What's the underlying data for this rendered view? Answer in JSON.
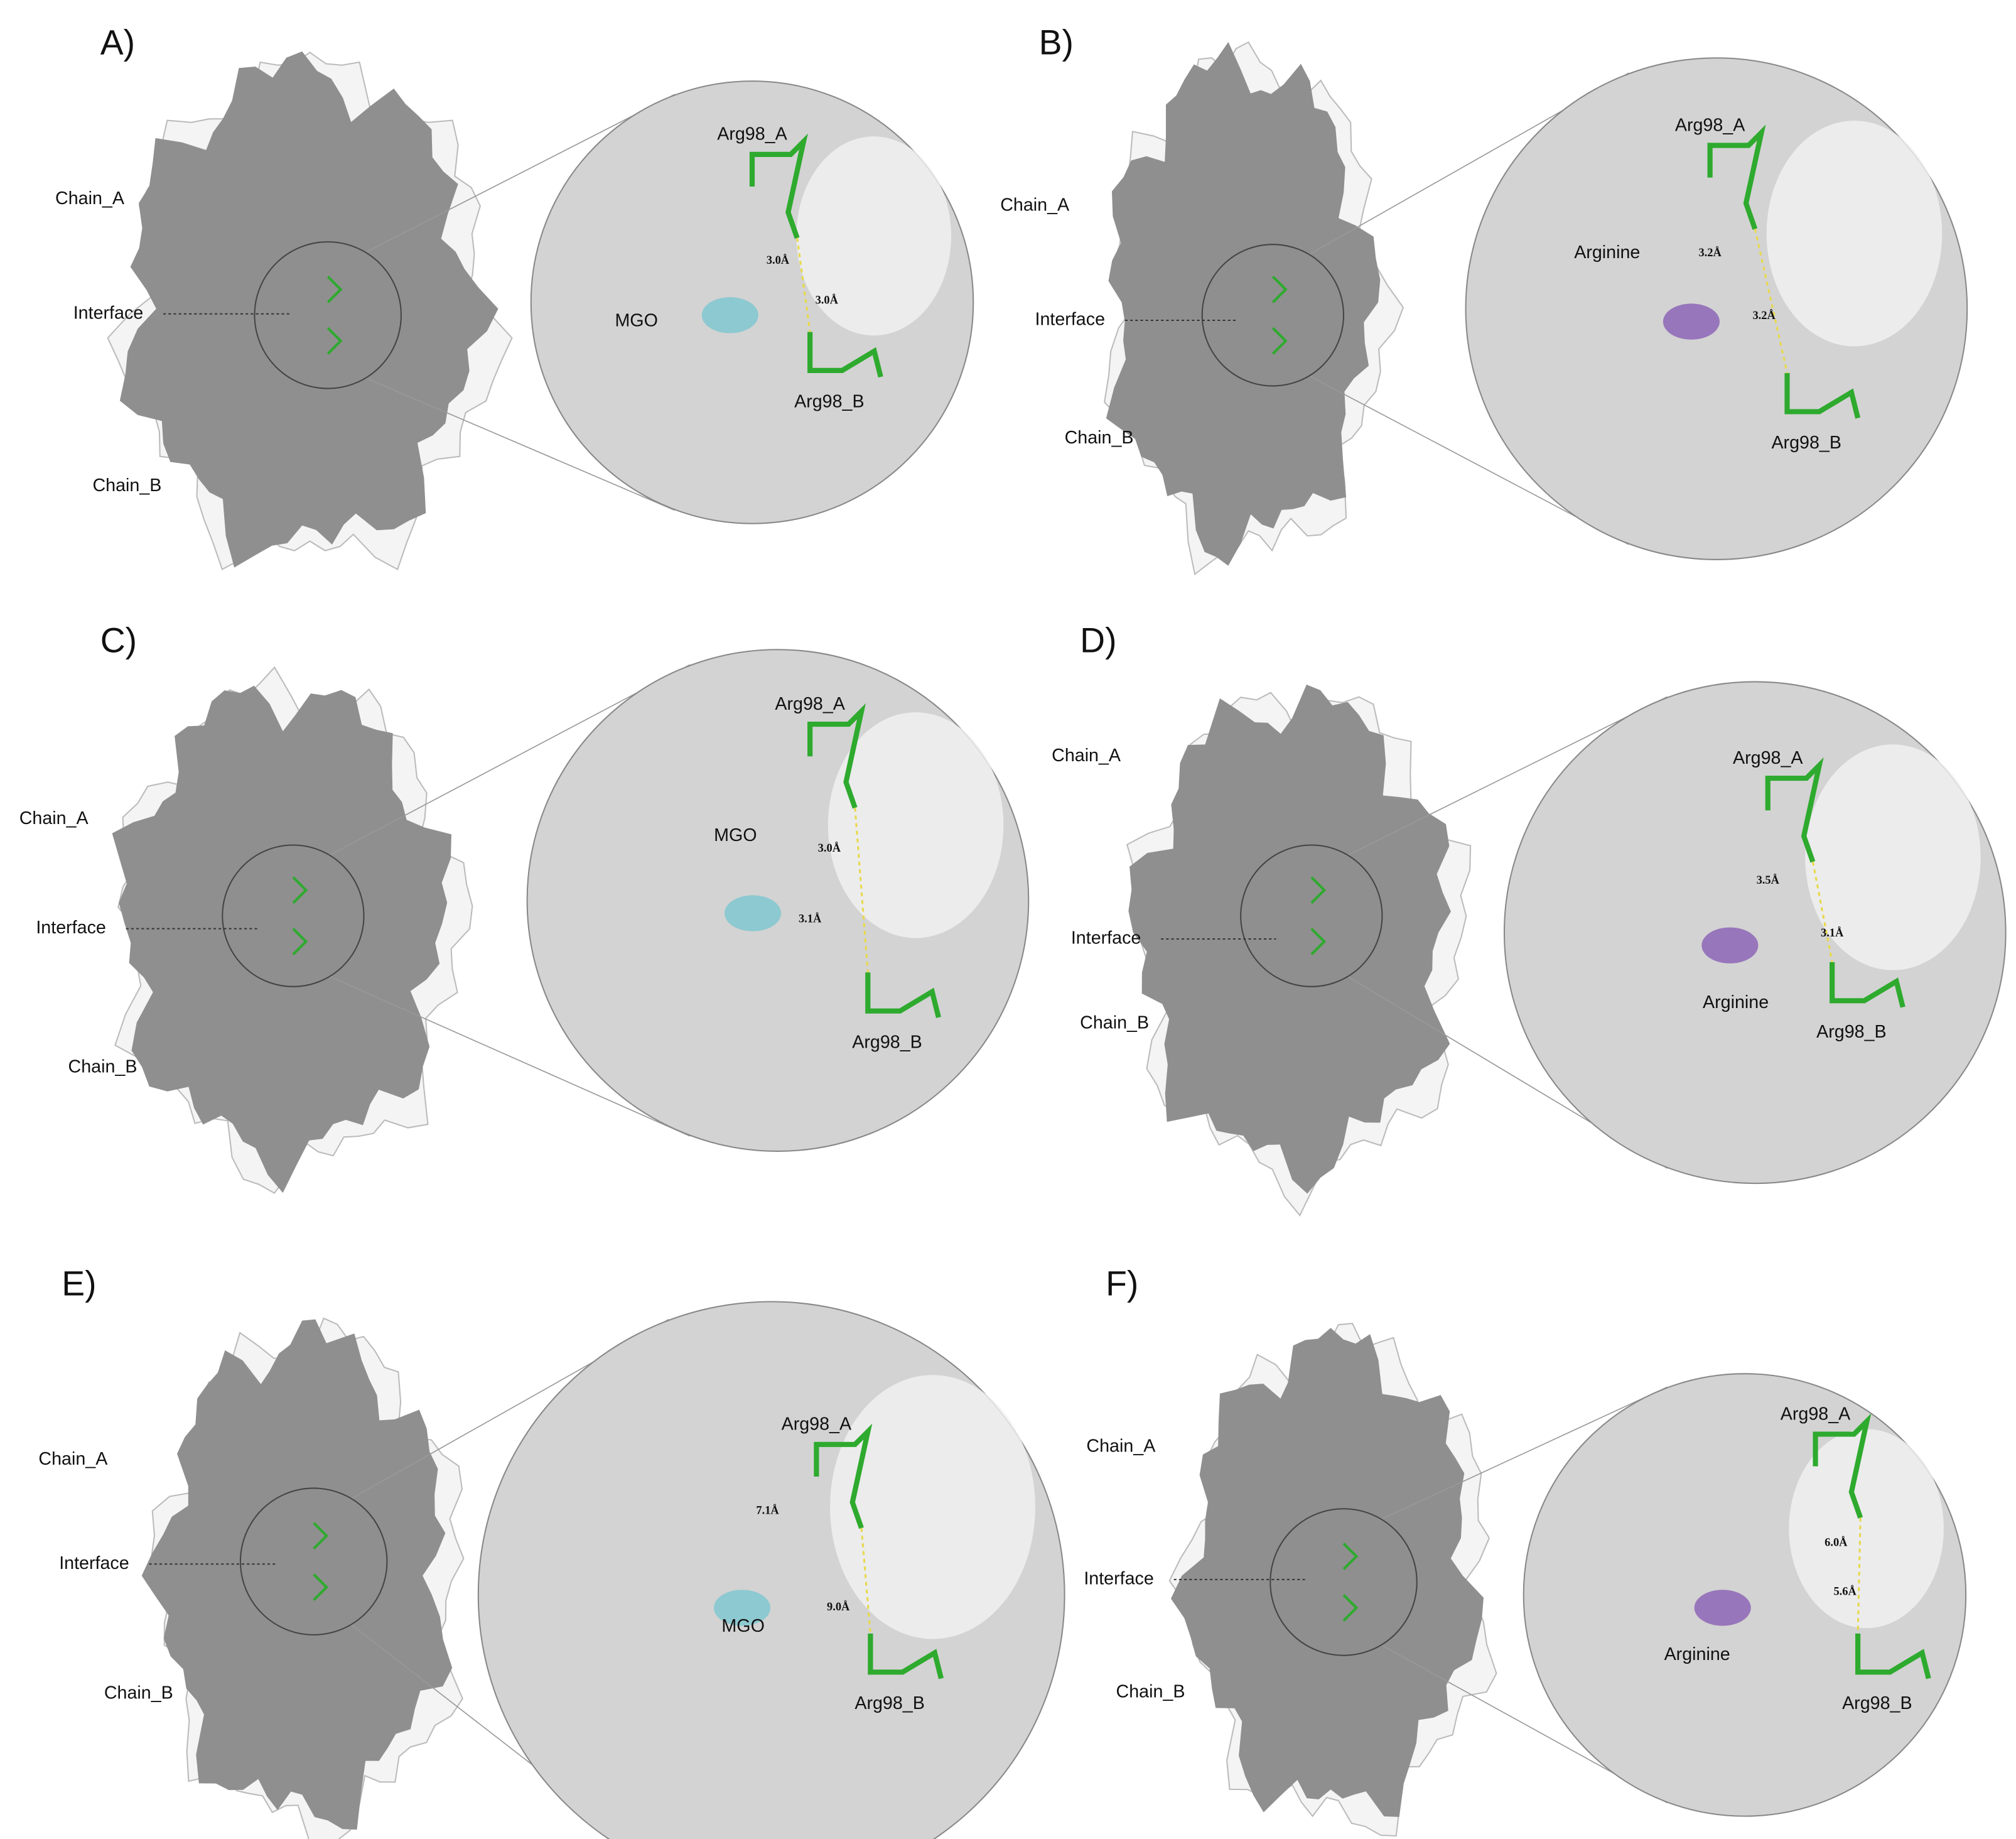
{
  "panels": [
    {
      "label": "A)",
      "chain_a": "Chain_A",
      "interface": "Interface",
      "chain_b": "Chain_B",
      "zoom_labels": [
        "Arg98_A",
        "3.0Å",
        "3.0Å",
        "MGO",
        "Arg98_B"
      ]
    },
    {
      "label": "B)",
      "chain_a": "Chain_A",
      "interface": "Interface",
      "chain_b": "Chain_B",
      "zoom_labels": [
        "Arg98_A",
        "3.2Å",
        "3.2Å",
        "Arginine",
        "Arg98_B"
      ]
    },
    {
      "label": "C)",
      "chain_a": "Chain_A",
      "interface": "Interface",
      "chain_b": "Chain_B",
      "zoom_labels": [
        "Arg98_A",
        "MGO",
        "3.0Å",
        "3.1Å",
        "Arg98_B"
      ]
    },
    {
      "label": "D)",
      "chain_a": "Chain_A",
      "interface": "Interface",
      "chain_b": "Chain_B",
      "zoom_labels": [
        "Arg98_A",
        "3.5Å",
        "3.1Å",
        "Arginine",
        "Arg98_B"
      ]
    },
    {
      "label": "E)",
      "chain_a": "Chain_A",
      "interface": "Interface",
      "chain_b": "Chain_B",
      "zoom_labels": [
        "Arg98_A",
        "7.1Å",
        "MGO",
        "9.0Å",
        "Arg98_B"
      ]
    },
    {
      "label": "F)",
      "chain_a": "Chain_A",
      "interface": "Interface",
      "chain_b": "Chain_B",
      "zoom_labels": [
        "Arg98_A",
        "6.0Å",
        "5.6Å",
        "Arginine",
        "Arg98_B"
      ]
    }
  ]
}
